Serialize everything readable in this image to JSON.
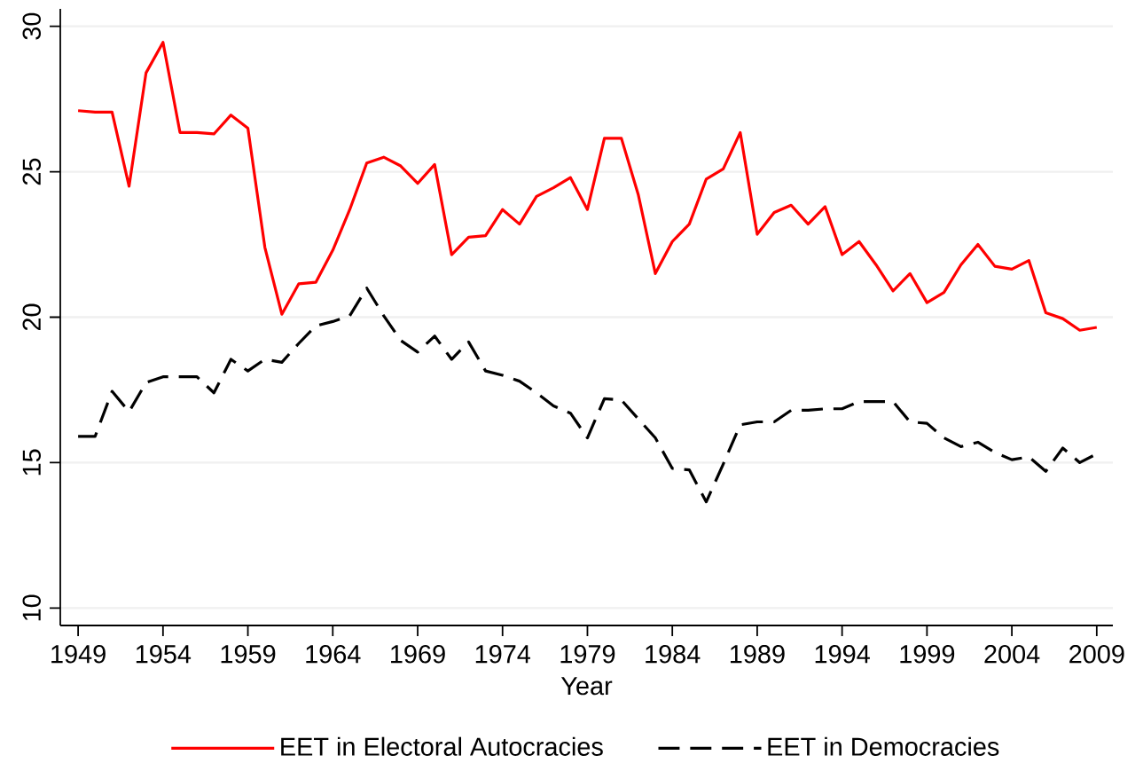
{
  "chart_data": {
    "type": "line",
    "xlabel": "Year",
    "x": [
      1949,
      1950,
      1951,
      1952,
      1953,
      1954,
      1955,
      1956,
      1957,
      1958,
      1959,
      1960,
      1961,
      1962,
      1963,
      1964,
      1965,
      1966,
      1967,
      1968,
      1969,
      1970,
      1971,
      1972,
      1973,
      1974,
      1975,
      1976,
      1977,
      1978,
      1979,
      1980,
      1981,
      1982,
      1983,
      1984,
      1985,
      1986,
      1987,
      1988,
      1989,
      1990,
      1991,
      1992,
      1993,
      1994,
      1995,
      1996,
      1997,
      1998,
      1999,
      2000,
      2001,
      2002,
      2003,
      2004,
      2005,
      2006,
      2007,
      2008,
      2009
    ],
    "series": [
      {
        "name": "EET in Electoral Autocracies",
        "color": "#ff0000",
        "line_style": "solid",
        "values": [
          27.1,
          27.05,
          27.05,
          24.5,
          28.4,
          29.45,
          26.35,
          26.35,
          26.3,
          26.95,
          26.5,
          22.4,
          20.1,
          21.15,
          21.2,
          22.3,
          23.7,
          25.3,
          25.5,
          25.2,
          24.6,
          25.25,
          22.15,
          22.75,
          22.8,
          23.7,
          23.2,
          24.15,
          24.45,
          24.8,
          23.7,
          26.15,
          26.15,
          24.2,
          21.5,
          22.6,
          23.2,
          24.75,
          25.1,
          26.35,
          22.85,
          23.6,
          23.85,
          23.2,
          23.8,
          22.15,
          22.6,
          21.8,
          20.9,
          21.5,
          20.5,
          20.85,
          21.8,
          22.5,
          21.75,
          21.65,
          21.95,
          20.15,
          19.95,
          19.55,
          19.65
        ]
      },
      {
        "name": "EET in Democracies",
        "color": "#000000",
        "line_style": "dashed",
        "values": [
          15.9,
          15.9,
          17.45,
          16.75,
          17.75,
          17.95,
          17.95,
          17.95,
          17.4,
          18.55,
          18.15,
          18.55,
          18.45,
          19.1,
          19.7,
          19.85,
          20.05,
          21.0,
          20.05,
          19.2,
          18.8,
          19.35,
          18.55,
          19.15,
          18.15,
          18.0,
          17.8,
          17.4,
          16.95,
          16.7,
          15.85,
          17.2,
          17.15,
          16.5,
          15.85,
          14.8,
          14.75,
          13.65,
          14.95,
          16.3,
          16.4,
          16.4,
          16.8,
          16.8,
          16.85,
          16.85,
          17.1,
          17.1,
          17.1,
          16.4,
          16.35,
          15.85,
          15.55,
          15.7,
          15.35,
          15.1,
          15.2,
          14.7,
          15.5,
          15.0,
          15.3
        ]
      }
    ],
    "xlim": [
      1947.95,
      2009.95
    ],
    "ylim": [
      9.4,
      30.6
    ],
    "xticks": [
      1949,
      1954,
      1959,
      1964,
      1969,
      1974,
      1979,
      1984,
      1989,
      1994,
      1999,
      2004,
      2009
    ],
    "yticks": [
      10,
      15,
      20,
      25,
      30
    ],
    "grid": "y",
    "legend": "bottom",
    "marker": "none"
  }
}
